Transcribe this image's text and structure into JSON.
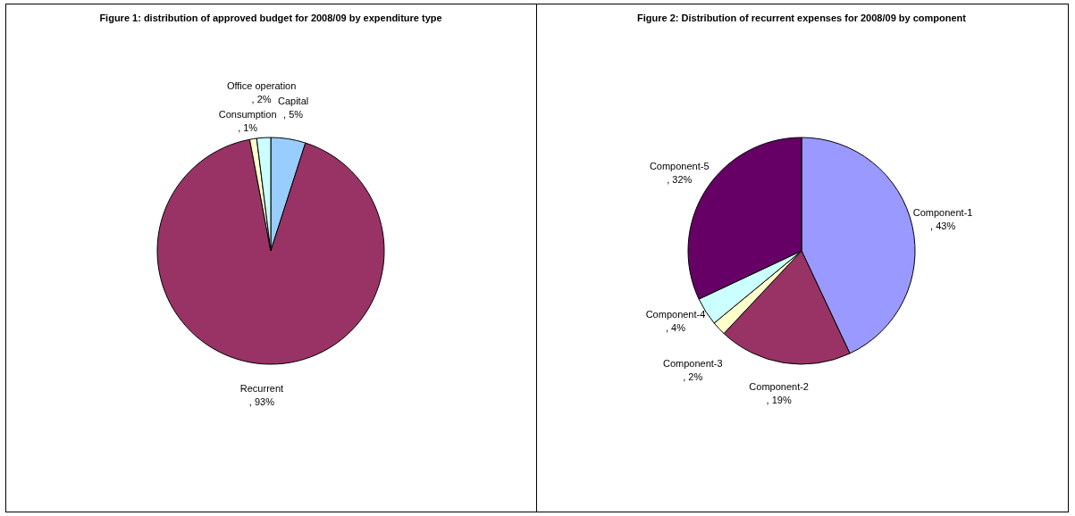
{
  "chart_data": [
    {
      "type": "pie",
      "title": "Figure 1: distribution of approved budget for 2008/09 by expenditure type",
      "categories": [
        "Capital ",
        "Recurrent ",
        "Consumption",
        "Office operation"
      ],
      "values": [
        5,
        93,
        1,
        2
      ],
      "colors": [
        "#99ccff",
        "#993366",
        "#ffffcc",
        "#ccffff"
      ],
      "value_labels": [
        ", 5%",
        ", 93%",
        ", 1%",
        ", 2%"
      ]
    },
    {
      "type": "pie",
      "title": "Figure 2: Distribution of recurrent expenses for 2008/09 by component",
      "categories": [
        "Component-1",
        "Component-2",
        "Component-3",
        "Component-4",
        "Component-5"
      ],
      "values": [
        43,
        19,
        2,
        4,
        32
      ],
      "colors": [
        "#9999ff",
        "#993366",
        "#ffffcc",
        "#ccffff",
        "#660066"
      ],
      "value_labels": [
        ", 43%",
        ", 19%",
        ", 2%",
        ", 4%",
        ", 32%"
      ]
    }
  ]
}
